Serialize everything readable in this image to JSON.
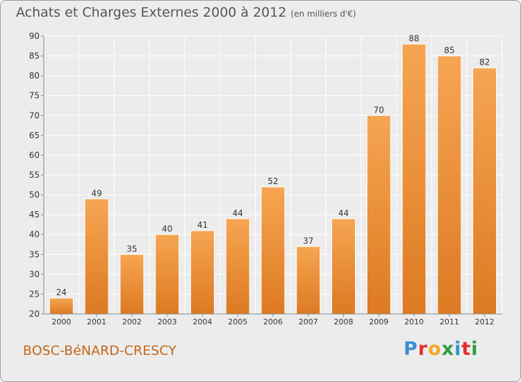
{
  "page": {
    "title": "Achats et Charges Externes 2000 à 2012",
    "unit": "(en milliers d'€)",
    "town": "BOSC-BéNARD-CRESCY",
    "logo_letters": [
      "P",
      "r",
      "o",
      "x",
      "i",
      "t",
      "i"
    ]
  },
  "colors": {
    "bar_top": "#f6a552",
    "bar_bottom": "#dd7a22",
    "bar_edge": "#ffffff",
    "grid": "#ffffff",
    "axis": "#888888",
    "town": "#c4661c"
  },
  "chart_data": {
    "type": "bar",
    "title": "Achats et Charges Externes 2000 à 2012",
    "subtitle": "(en milliers d'€)",
    "xlabel": "",
    "ylabel": "",
    "categories": [
      "2000",
      "2001",
      "2002",
      "2003",
      "2004",
      "2005",
      "2006",
      "2007",
      "2008",
      "2009",
      "2010",
      "2011",
      "2012"
    ],
    "values": [
      24,
      49,
      35,
      40,
      41,
      44,
      52,
      37,
      44,
      70,
      88,
      85,
      82
    ],
    "ylim": [
      20,
      90
    ],
    "yticks": [
      20,
      25,
      30,
      35,
      40,
      45,
      50,
      55,
      60,
      65,
      70,
      75,
      80,
      85,
      90
    ],
    "grid": true,
    "legend": "none"
  }
}
